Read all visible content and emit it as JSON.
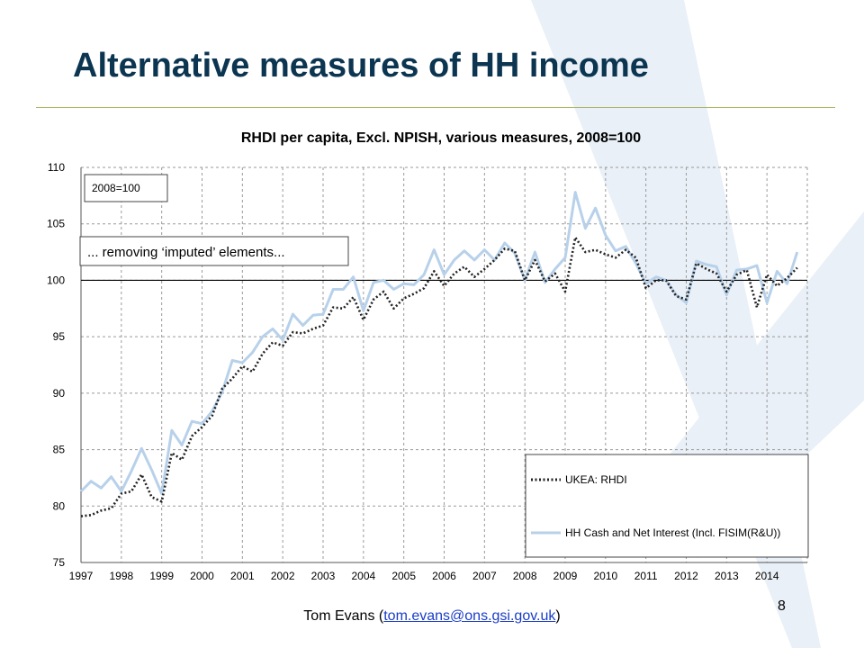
{
  "slide": {
    "title": "Alternative measures of HH income",
    "footer_prefix": "Tom Evans (",
    "footer_email": "tom.evans@ons.gsi.gov.uk",
    "footer_suffix": ")",
    "page_number": "8"
  },
  "colors": {
    "title": "#0b3550",
    "rule": "#a7b45a",
    "logo_watermark": "#e6eef6",
    "series_rhdi": "#222222",
    "series_cash": "#b8d1ea"
  },
  "chart_data": {
    "type": "line",
    "title": "RHDI per capita, Excl. NPISH, various measures, 2008=100",
    "xlabel": "",
    "ylabel": "",
    "ylim": [
      75,
      110
    ],
    "yticks": [
      75,
      80,
      85,
      90,
      95,
      100,
      105,
      110
    ],
    "xlim": [
      1997,
      2015
    ],
    "xticks": [
      1997,
      1998,
      1999,
      2000,
      2001,
      2002,
      2003,
      2004,
      2005,
      2006,
      2007,
      2008,
      2009,
      2010,
      2011,
      2012,
      2013,
      2014
    ],
    "grid": true,
    "reference_line": 100,
    "legend_position": "bottom-right",
    "annotations": [
      "2008=100",
      "... removing ‘imputed’ elements..."
    ],
    "x": [
      1997.0,
      1997.25,
      1997.5,
      1997.75,
      1998.0,
      1998.25,
      1998.5,
      1998.75,
      1999.0,
      1999.25,
      1999.5,
      1999.75,
      2000.0,
      2000.25,
      2000.5,
      2000.75,
      2001.0,
      2001.25,
      2001.5,
      2001.75,
      2002.0,
      2002.25,
      2002.5,
      2002.75,
      2003.0,
      2003.25,
      2003.5,
      2003.75,
      2004.0,
      2004.25,
      2004.5,
      2004.75,
      2005.0,
      2005.25,
      2005.5,
      2005.75,
      2006.0,
      2006.25,
      2006.5,
      2006.75,
      2007.0,
      2007.25,
      2007.5,
      2007.75,
      2008.0,
      2008.25,
      2008.5,
      2008.75,
      2009.0,
      2009.25,
      2009.5,
      2009.75,
      2010.0,
      2010.25,
      2010.5,
      2010.75,
      2011.0,
      2011.25,
      2011.5,
      2011.75,
      2012.0,
      2012.25,
      2012.5,
      2012.75,
      2013.0,
      2013.25,
      2013.5,
      2013.75,
      2014.0,
      2014.25,
      2014.5,
      2014.75
    ],
    "series": [
      {
        "name": "UKEA: RHDI",
        "style": "dotted",
        "values": [
          79.1,
          79.2,
          79.6,
          79.8,
          81.1,
          81.3,
          82.8,
          80.8,
          80.4,
          84.7,
          84.1,
          86.2,
          87.0,
          88.0,
          90.4,
          91.3,
          92.4,
          91.9,
          93.5,
          94.5,
          94.2,
          95.4,
          95.3,
          95.7,
          96.0,
          97.6,
          97.5,
          98.5,
          96.5,
          98.3,
          99.0,
          97.5,
          98.4,
          98.8,
          99.3,
          100.8,
          99.5,
          100.6,
          101.2,
          100.3,
          101.0,
          101.8,
          102.8,
          102.6,
          100.0,
          101.8,
          99.9,
          100.6,
          99.0,
          103.8,
          102.5,
          102.7,
          102.3,
          102.0,
          102.7,
          102.0,
          99.3,
          100.0,
          100.0,
          98.6,
          98.3,
          101.5,
          101.0,
          100.6,
          99.0,
          100.5,
          100.9,
          97.6,
          100.5,
          99.5,
          100.2,
          101.1
        ]
      },
      {
        "name": "HH Cash and Net Interest (Incl. FISIM(R&U))",
        "style": "solid",
        "values": [
          81.3,
          82.2,
          81.6,
          82.6,
          81.3,
          83.1,
          85.1,
          83.2,
          81.1,
          86.7,
          85.4,
          87.5,
          87.3,
          88.4,
          90.1,
          92.9,
          92.7,
          93.6,
          95.0,
          95.7,
          94.7,
          97.0,
          96.0,
          96.9,
          97.0,
          99.2,
          99.2,
          100.3,
          97.3,
          99.8,
          100.0,
          99.2,
          99.7,
          99.6,
          100.5,
          102.7,
          100.5,
          101.8,
          102.6,
          101.8,
          102.7,
          101.8,
          103.3,
          102.4,
          100.0,
          102.5,
          99.8,
          101.0,
          102.0,
          107.8,
          104.6,
          106.4,
          104.0,
          102.6,
          103.0,
          101.5,
          99.7,
          100.3,
          100.0,
          98.7,
          98.0,
          101.7,
          101.4,
          101.2,
          98.7,
          100.9,
          101.0,
          101.3,
          98.0,
          100.8,
          99.7,
          102.5
        ]
      }
    ]
  }
}
